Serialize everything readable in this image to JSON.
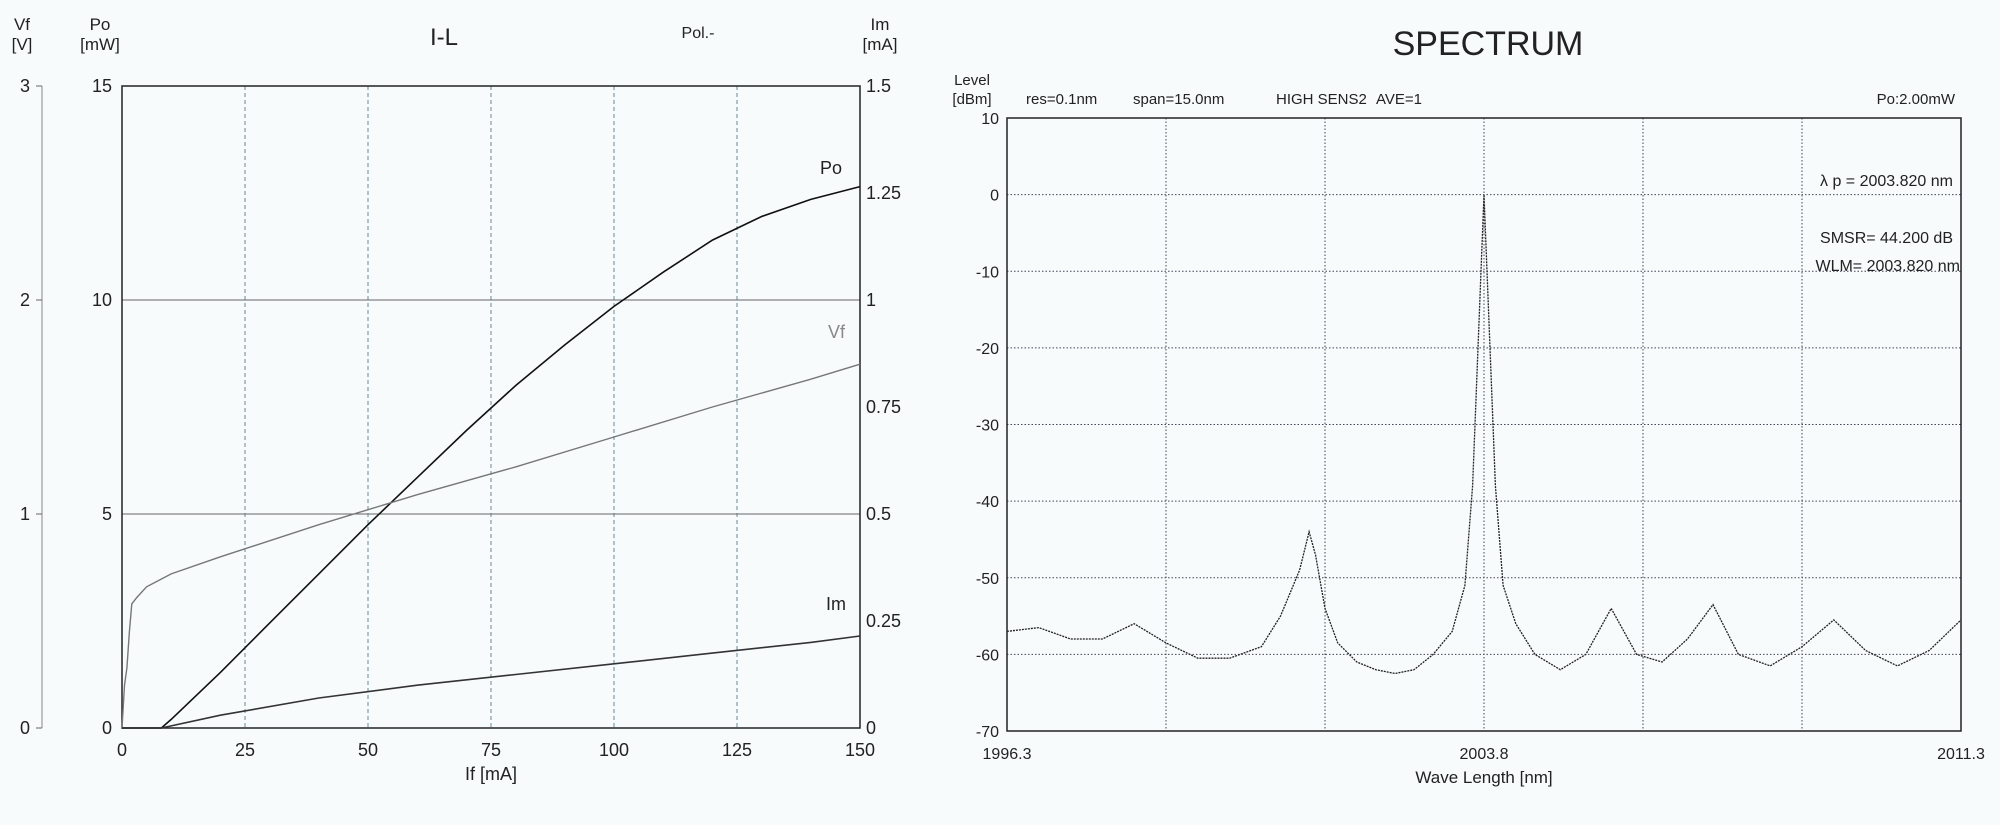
{
  "chart_data": [
    {
      "type": "line",
      "title": "I-L",
      "annotation": "Pol.-",
      "xlabel": "If [mA]",
      "x_ticks": [
        "0",
        "25",
        "50",
        "75",
        "100",
        "125",
        "150"
      ],
      "xlim": [
        0,
        150
      ],
      "y_axes": {
        "vf": {
          "label_top": "Vf",
          "label_unit": "[V]",
          "ylim": [
            0,
            3
          ],
          "ticks": [
            "0",
            "1",
            "2",
            "3"
          ]
        },
        "po": {
          "label_top": "Po",
          "label_unit": "[mW]",
          "ylim": [
            0,
            15
          ],
          "ticks": [
            "0",
            "5",
            "10",
            "15"
          ]
        },
        "im": {
          "label_top": "Im",
          "label_unit": "[mA]",
          "ylim": [
            0,
            1.5
          ],
          "ticks": [
            "0",
            "0.25",
            "0.5",
            "0.75",
            "1",
            "1.25",
            "1.5"
          ]
        }
      },
      "grid": true,
      "series": [
        {
          "name": "Po",
          "axis": "po",
          "color": "#111111",
          "x": [
            0,
            8,
            10,
            20,
            30,
            40,
            50,
            60,
            70,
            80,
            90,
            100,
            110,
            120,
            130,
            140,
            150
          ],
          "y": [
            0,
            0,
            0.2,
            1.3,
            2.45,
            3.6,
            4.75,
            5.85,
            6.95,
            8.0,
            8.95,
            9.85,
            10.65,
            11.4,
            11.95,
            12.35,
            12.65
          ]
        },
        {
          "name": "Vf",
          "axis": "vf",
          "color": "#777777",
          "x": [
            0,
            0.5,
            1,
            1.5,
            2,
            3,
            5,
            10,
            20,
            40,
            60,
            80,
            100,
            120,
            140,
            150
          ],
          "y": [
            0,
            0.2,
            0.28,
            0.45,
            0.58,
            0.61,
            0.66,
            0.72,
            0.8,
            0.95,
            1.09,
            1.22,
            1.36,
            1.5,
            1.63,
            1.7
          ]
        },
        {
          "name": "Im",
          "axis": "im",
          "color": "#333333",
          "x": [
            0,
            8,
            10,
            20,
            40,
            60,
            80,
            100,
            120,
            140,
            150
          ],
          "y": [
            0,
            0,
            0.005,
            0.03,
            0.07,
            0.1,
            0.125,
            0.15,
            0.175,
            0.2,
            0.215
          ]
        }
      ]
    },
    {
      "type": "line",
      "title": "SPECTRUM",
      "ylabel": "Level",
      "ylabel_unit": "[dBm]",
      "header": [
        "res=0.1nm",
        "span=15.0nm",
        "HIGH SENS2",
        "AVE=1",
        "Po:2.00mW"
      ],
      "annotations": [
        "λ p = 2003.820 nm",
        "SMSR= 44.200 dB",
        "WLM= 2003.820 nm"
      ],
      "xlabel": "Wave Length [nm]",
      "x_ticks": [
        "1996.3",
        "2003.8",
        "2011.3"
      ],
      "xlim": [
        1996.3,
        2011.3
      ],
      "ylim": [
        -70,
        10
      ],
      "y_ticks": [
        "10",
        "0",
        "-10",
        "-20",
        "-30",
        "-40",
        "-50",
        "-60",
        "-70"
      ],
      "grid": true,
      "series": [
        {
          "name": "",
          "color": "#222222",
          "x": [
            1996.3,
            1996.8,
            1997.3,
            1997.8,
            1998.3,
            1998.8,
            1999.3,
            1999.8,
            2000.3,
            2000.6,
            2000.9,
            2001.05,
            2001.15,
            2001.3,
            2001.5,
            2001.8,
            2002.1,
            2002.4,
            2002.7,
            2003.0,
            2003.3,
            2003.5,
            2003.62,
            2003.72,
            2003.8,
            2003.88,
            2003.98,
            2004.1,
            2004.3,
            2004.6,
            2005.0,
            2005.4,
            2005.8,
            2006.2,
            2006.6,
            2007.0,
            2007.4,
            2007.8,
            2008.3,
            2008.8,
            2009.3,
            2009.8,
            2010.3,
            2010.8,
            2011.3
          ],
          "y": [
            -57,
            -56.5,
            -58,
            -58,
            -56,
            -58.5,
            -60.5,
            -60.5,
            -59,
            -55,
            -49,
            -44,
            -47,
            -54,
            -58.5,
            -61,
            -62,
            -62.5,
            -62,
            -60,
            -57,
            -51,
            -38,
            -17,
            0,
            -17,
            -38,
            -51,
            -56,
            -60,
            -62,
            -60,
            -54,
            -60,
            -61,
            -58,
            -53.5,
            -60,
            -61.5,
            -59,
            -55.5,
            -59.5,
            -61.5,
            -59.5,
            -55.5
          ]
        }
      ]
    }
  ]
}
